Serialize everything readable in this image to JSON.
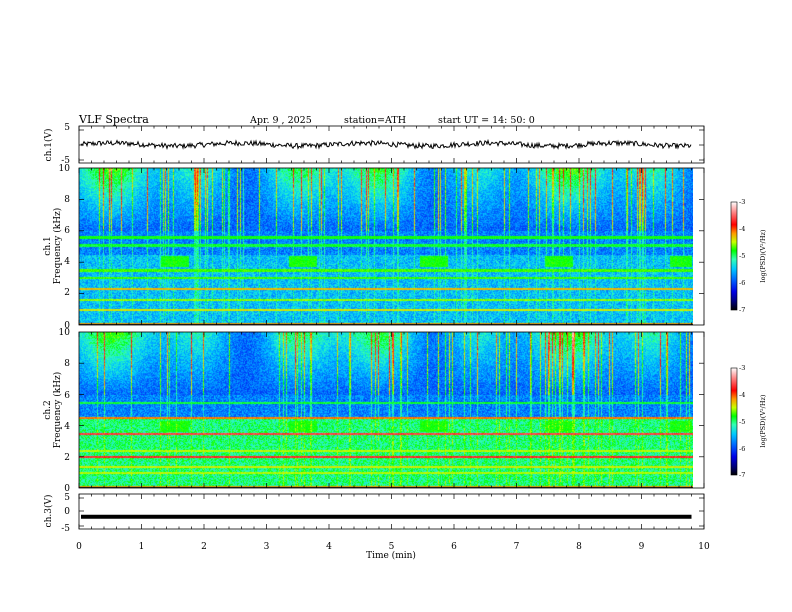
{
  "header": {
    "title": "VLF  Spectra",
    "date": "Apr. 9  , 2025",
    "station": "station=ATH",
    "start": "start  UT  =   14: 50: 0"
  },
  "chart_data": [
    {
      "type": "line",
      "panel": "ch1-waveform",
      "ylabel": "ch.1(V)",
      "ylim": [
        -5,
        5
      ],
      "yticks": [
        "5",
        "-5"
      ],
      "xlim": [
        0,
        10
      ],
      "series": [
        {
          "x_end": 9.8,
          "baseline": 0,
          "amplitude_approx": 1.0,
          "color": "#000000"
        }
      ]
    },
    {
      "type": "heatmap",
      "panel": "ch1-spectrogram",
      "ylabel": [
        "ch.1",
        "Frequency  (kHz)"
      ],
      "ylim": [
        0,
        10
      ],
      "yticks": [
        "0",
        "2",
        "4",
        "6",
        "8",
        "10"
      ],
      "xlim": [
        0,
        10
      ],
      "x_end": 9.8,
      "tone_bursts": {
        "freq_khz": 4.1,
        "intervals_min": [
          [
            1.3,
            1.75
          ],
          [
            3.35,
            3.8
          ],
          [
            5.45,
            5.9
          ],
          [
            7.45,
            7.9
          ],
          [
            9.45,
            9.8
          ]
        ]
      },
      "colorbar": {
        "label": "log(PSD)(V²/Hz)",
        "range": [
          -7,
          -3
        ],
        "ticks": [
          "-3",
          "-4",
          "-5",
          "-6",
          "-7"
        ]
      }
    },
    {
      "type": "heatmap",
      "panel": "ch2-spectrogram",
      "ylabel": [
        "ch.2",
        "Frequency  (kHz)"
      ],
      "ylim": [
        0,
        10
      ],
      "yticks": [
        "0",
        "2",
        "4",
        "6",
        "8",
        "10"
      ],
      "xlim": [
        0,
        10
      ],
      "x_end": 9.8,
      "tone_bursts": {
        "freq_khz": 4.0,
        "intervals_min": [
          [
            1.3,
            1.75
          ],
          [
            3.35,
            3.8
          ],
          [
            5.45,
            5.9
          ],
          [
            7.45,
            7.9
          ],
          [
            9.45,
            9.8
          ]
        ]
      },
      "colorbar": {
        "label": "log(PSD)(V²/Hz)",
        "range": [
          -7,
          -3
        ],
        "ticks": [
          "-3",
          "-4",
          "-5",
          "-6",
          "-7"
        ]
      }
    },
    {
      "type": "line",
      "panel": "ch3-waveform",
      "ylabel": "ch.3(V)",
      "ylim": [
        -5,
        5
      ],
      "yticks": [
        "5",
        "0",
        "-5"
      ],
      "xlim": [
        0,
        10
      ],
      "series": [
        {
          "x_end": 9.8,
          "baseline": -1.5,
          "amplitude_approx": 0.2,
          "color": "#000000"
        }
      ]
    }
  ],
  "xaxis": {
    "label": "Time  (min)",
    "ticks": [
      "0",
      "1",
      "2",
      "3",
      "4",
      "5",
      "6",
      "7",
      "8",
      "9",
      "10"
    ]
  },
  "colors": {
    "scale": [
      "#000000",
      "#00007a",
      "#0000e6",
      "#0066ff",
      "#00c8ff",
      "#33ffb4",
      "#00ff00",
      "#c8ff00",
      "#ff9900",
      "#ff0000",
      "#ff8080",
      "#ffffff"
    ]
  }
}
